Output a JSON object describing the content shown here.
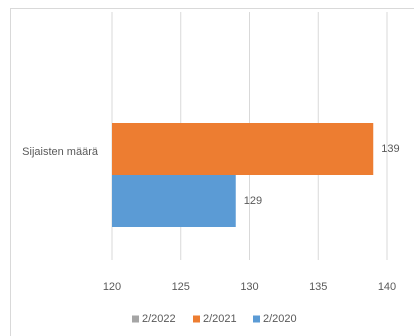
{
  "chart_data": {
    "type": "bar",
    "orientation": "horizontal",
    "categories": [
      "Sijaisten määrä"
    ],
    "series": [
      {
        "name": "2/2022",
        "values": [
          null
        ],
        "color": "#a5a5a5"
      },
      {
        "name": "2/2021",
        "values": [
          139
        ],
        "color": "#ed7d31"
      },
      {
        "name": "2/2020",
        "values": [
          129
        ],
        "color": "#5b9bd5"
      }
    ],
    "xlim": [
      120,
      140
    ],
    "xticks": [
      "120",
      "125",
      "130",
      "135",
      "140"
    ],
    "data_labels": [
      "139",
      "129"
    ],
    "title": "",
    "xlabel": "",
    "ylabel": "",
    "grid": "vertical",
    "legend": "bottom"
  }
}
